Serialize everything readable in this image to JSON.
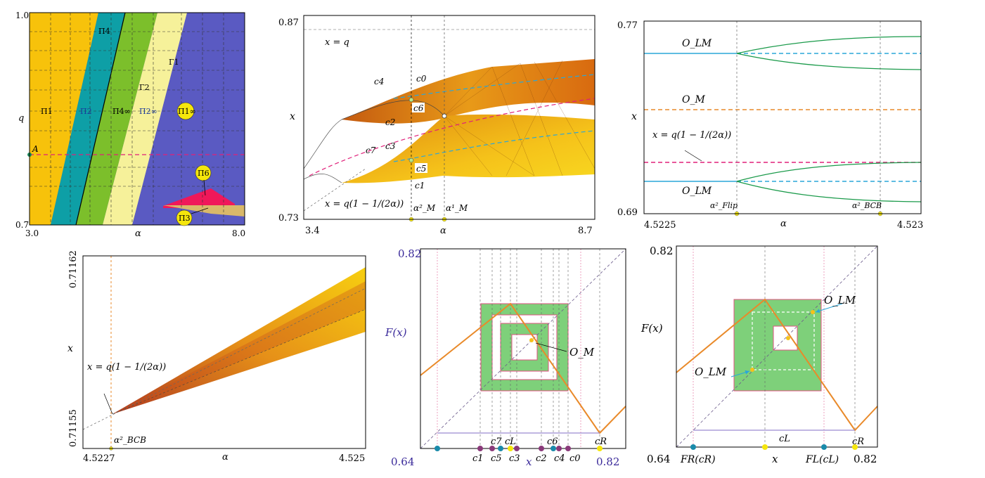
{
  "chart_data": [
    {
      "type": "heatmap",
      "panel": "parameter-plane",
      "xlabel": "α",
      "ylabel": "q",
      "xlim": [
        3.0,
        8.0
      ],
      "ylim": [
        0.7,
        1.0
      ],
      "x_ticks": [
        "3.0",
        "α",
        "8.0"
      ],
      "y_ticks": [
        "1.0",
        "0.7"
      ],
      "point_label": "A",
      "region_labels": [
        "Π1",
        "Π4",
        "Π2",
        "Π4∞",
        "Π2∞",
        "Γ2",
        "Γ1",
        "Π1∞",
        "Π6",
        "Π3"
      ],
      "colors": {
        "Π1": "#f7c20b",
        "Π2": "#0e9fa6",
        "Π4": "#7cbf2b",
        "Π2∞": "#f6f19a",
        "Π1∞": "#5a5ac2",
        "Π6": "#f0185a",
        "Π3": "#d9b86a"
      }
    },
    {
      "type": "scatter",
      "panel": "bifurcation-diagram-wide",
      "xlabel": "α",
      "ylabel": "x",
      "xlim": [
        3.4,
        8.7
      ],
      "ylim": [
        0.73,
        0.87
      ],
      "x_ticks": [
        "3.4",
        "α",
        "8.7"
      ],
      "y_ticks": [
        "0.87",
        "0.73"
      ],
      "curve_labels": [
        "x = q",
        "x = q(1 − 1/(2α))"
      ],
      "point_labels": [
        "c4",
        "c0",
        "c6",
        "c2",
        "c7",
        "c3",
        "c5",
        "c1"
      ],
      "vline_labels": [
        "α²_M",
        "α¹_M"
      ]
    },
    {
      "type": "line",
      "panel": "flip-and-bcb",
      "xlabel": "α",
      "ylabel": "x",
      "xlim": [
        4.5225,
        4.523
      ],
      "ylim": [
        0.69,
        0.77
      ],
      "x_ticks": [
        "4.5225",
        "α",
        "4.523"
      ],
      "y_ticks": [
        "0.77",
        "0.69"
      ],
      "orbit_labels": [
        "O_LM",
        "O_M",
        "O_LM"
      ],
      "curve_label": "x = q(1 − 1/(2α))",
      "vline_labels": [
        "α²_Flip",
        "α²_BCB"
      ]
    },
    {
      "type": "scatter",
      "panel": "bcb-zoom",
      "xlabel": "α",
      "ylabel": "x",
      "xlim": [
        4.5227,
        4.525
      ],
      "ylim": [
        0.71155,
        0.71162
      ],
      "x_ticks": [
        "4.5227",
        "α",
        "4.525"
      ],
      "y_ticks": [
        "0.71162",
        "0.71155"
      ],
      "curve_label": "x = q(1 − 1/(2α))",
      "vline_label": "α²_BCB"
    },
    {
      "type": "line",
      "panel": "map-orbit-M",
      "xlabel": "x",
      "ylabel": "F(x)",
      "xlim": [
        0.64,
        0.82
      ],
      "ylim": [
        0.64,
        0.82
      ],
      "x_ticks": [
        "0.64",
        "x",
        "0.82"
      ],
      "y_ticks": [
        "0.82",
        "0.64"
      ],
      "orbit_label": "O_M",
      "point_labels": [
        "c1",
        "c7",
        "c5",
        "cL",
        "c3",
        "c2",
        "c6",
        "c4",
        "c0",
        "cR"
      ]
    },
    {
      "type": "line",
      "panel": "map-orbit-LM",
      "xlabel": "x",
      "ylabel": "F(x)",
      "xlim": [
        0.64,
        0.82
      ],
      "ylim": [
        0.64,
        0.82
      ],
      "x_ticks": [
        "0.64",
        "x",
        "0.82"
      ],
      "y_ticks": [
        "0.82"
      ],
      "orbit_labels": [
        "O_LM",
        "O_LM"
      ],
      "point_labels": [
        "FR(cR)",
        "cL",
        "FL(cL)",
        "cR",
        "cL"
      ]
    }
  ]
}
